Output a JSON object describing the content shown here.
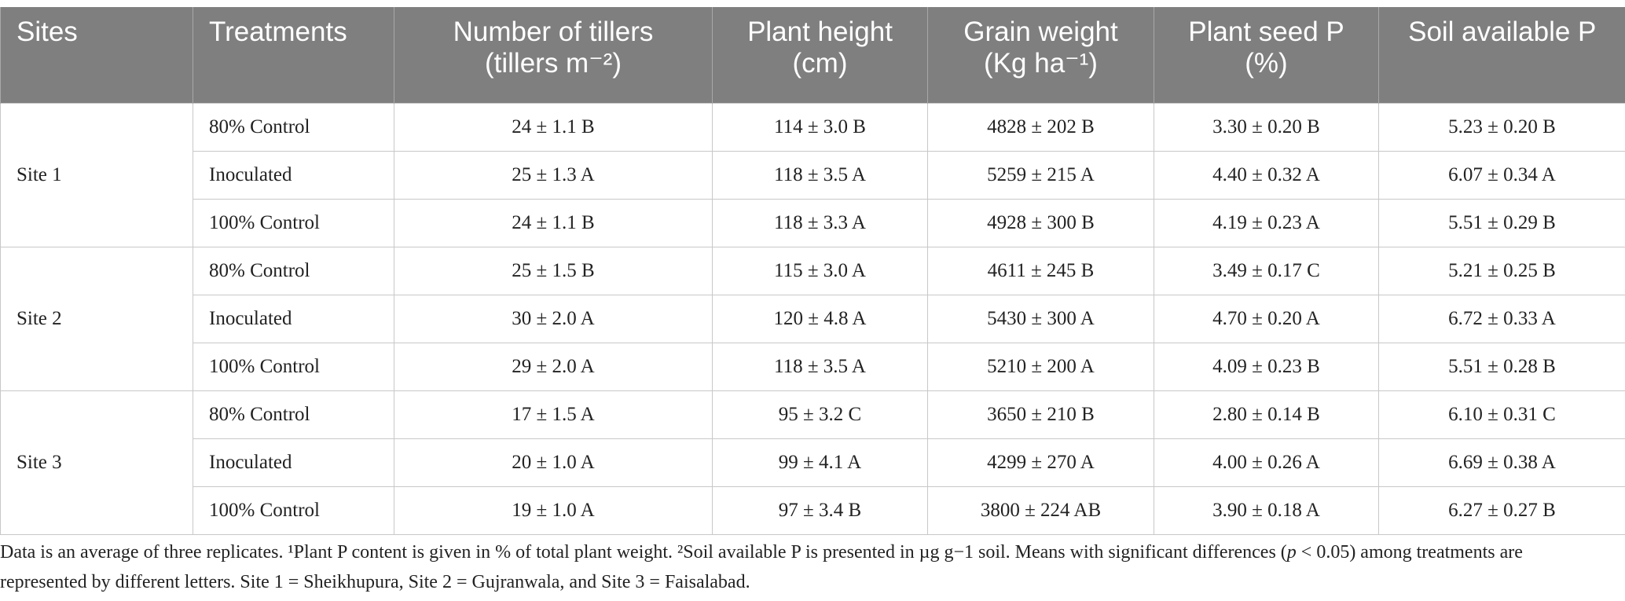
{
  "table": {
    "header": [
      [
        "Sites"
      ],
      [
        "Treatments"
      ],
      [
        "Number of tillers",
        "(tillers m⁻²)"
      ],
      [
        "Plant height",
        "(cm)"
      ],
      [
        "Grain weight",
        "(Kg ha⁻¹)"
      ],
      [
        "Plant seed P",
        "(%)"
      ],
      [
        "Soil available P"
      ]
    ],
    "groups": [
      {
        "site": "Site 1",
        "rows": [
          [
            "80% Control",
            "24 ± 1.1 B",
            "114 ± 3.0 B",
            "4828 ± 202 B",
            "3.30 ± 0.20 B",
            "5.23 ± 0.20 B"
          ],
          [
            "Inoculated",
            "25 ± 1.3 A",
            "118 ± 3.5 A",
            "5259 ± 215 A",
            "4.40 ± 0.32 A",
            "6.07 ± 0.34 A"
          ],
          [
            "100% Control",
            "24 ± 1.1 B",
            "118 ± 3.3 A",
            "4928 ± 300 B",
            "4.19 ± 0.23 A",
            "5.51 ± 0.29 B"
          ]
        ]
      },
      {
        "site": "Site 2",
        "rows": [
          [
            "80% Control",
            "25 ± 1.5 B",
            "115 ± 3.0 A",
            "4611 ± 245 B",
            "3.49 ± 0.17 C",
            "5.21 ± 0.25 B"
          ],
          [
            "Inoculated",
            "30 ± 2.0 A",
            "120 ± 4.8 A",
            "5430 ± 300 A",
            "4.70 ± 0.20 A",
            "6.72 ± 0.33 A"
          ],
          [
            "100% Control",
            "29 ± 2.0 A",
            "118 ± 3.5 A",
            "5210 ± 200 A",
            "4.09 ± 0.23 B",
            "5.51 ± 0.28 B"
          ]
        ]
      },
      {
        "site": "Site 3",
        "rows": [
          [
            "80% Control",
            "17 ± 1.5 A",
            "95 ± 3.2 C",
            "3650 ± 210 B",
            "2.80 ± 0.14 B",
            "6.10 ± 0.31 C"
          ],
          [
            "Inoculated",
            "20 ± 1.0 A",
            "99 ± 4.1 A",
            "4299 ± 270 A",
            "4.00 ± 0.26 A",
            "6.69 ± 0.38 A"
          ],
          [
            "100% Control",
            "19 ± 1.0 A",
            "97 ± 3.4 B",
            "3800 ± 224 AB",
            "3.90 ± 0.18 A",
            "6.27 ± 0.27 B"
          ]
        ]
      }
    ]
  },
  "footnote": [
    "Data is an average of three replicates. ¹Plant P content is given in % of total plant weight. ²Soil available P is presented in µg g−1 soil. Means with significant differences (",
    "p",
    " < 0.05) among treatments are represented by different letters. Site 1 = Sheikhupura, Site 2 = Gujranwala, and Site 3 = Faisalabad."
  ]
}
